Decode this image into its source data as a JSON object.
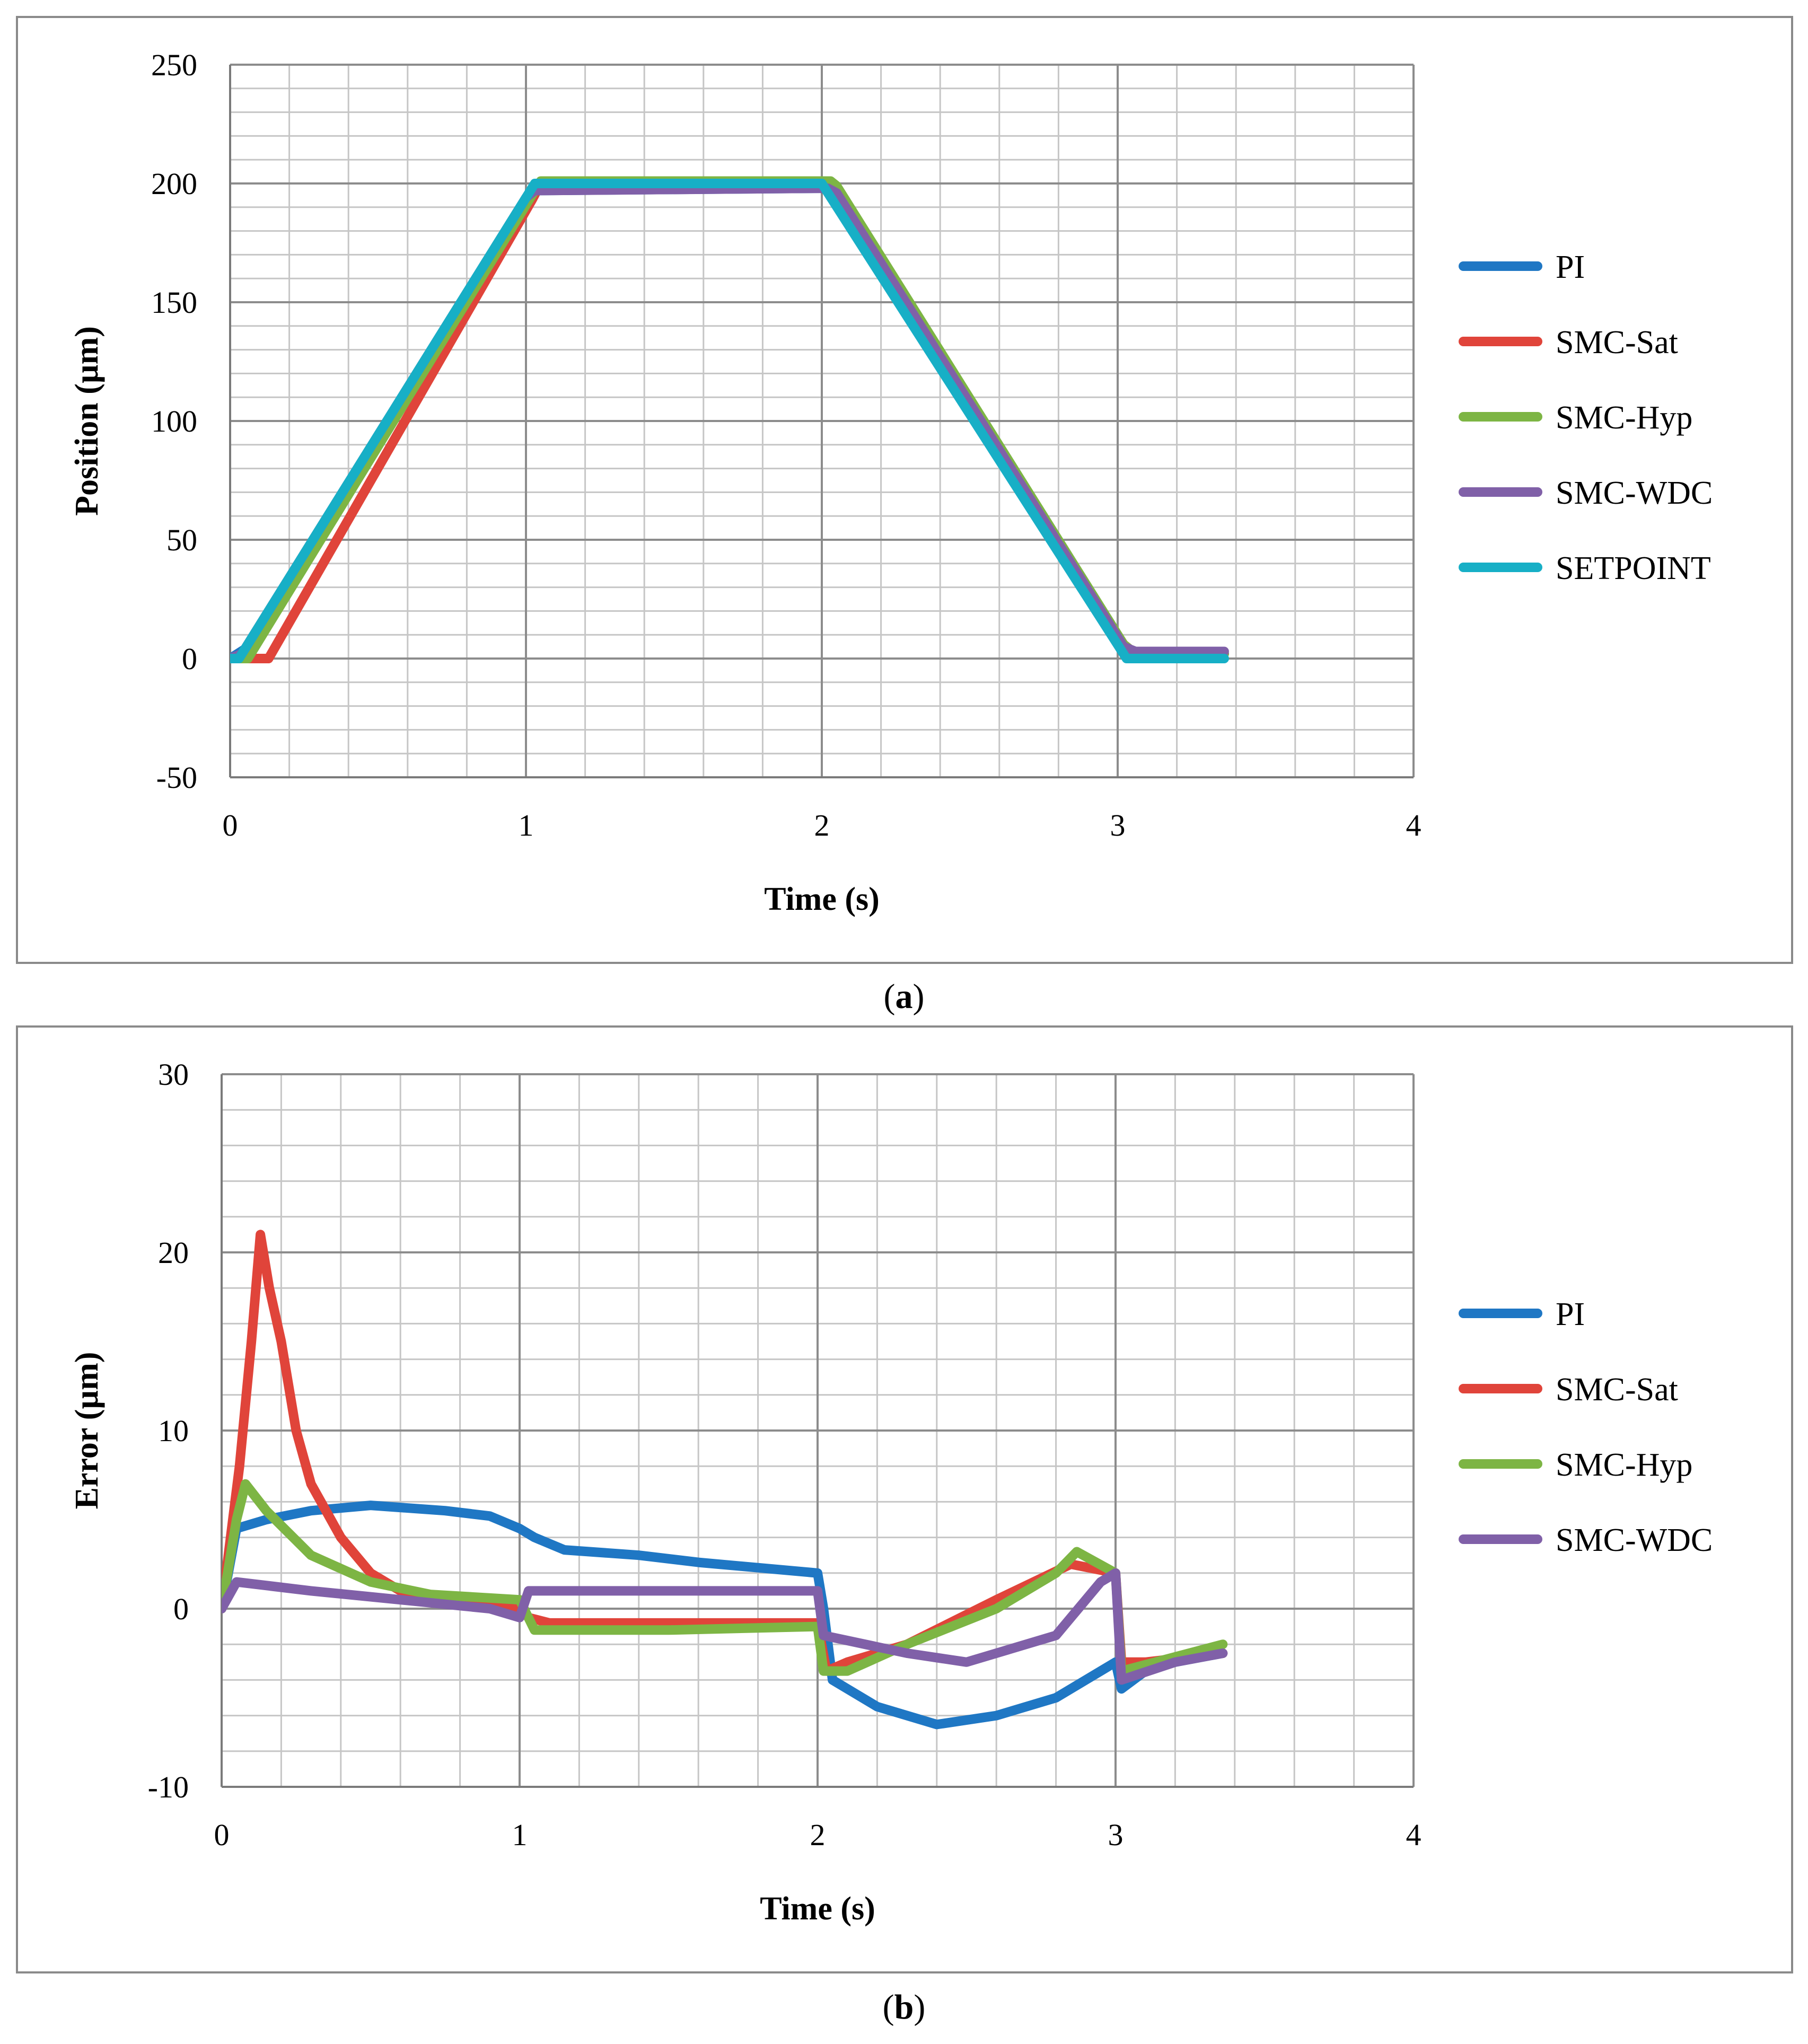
{
  "captions": {
    "a_open": "(",
    "a_letter": "a",
    "a_close": ")",
    "b_open": "(",
    "b_letter": "b",
    "b_close": ")"
  },
  "chart_data": [
    {
      "type": "line",
      "panel": "a",
      "xlabel": "Time (s)",
      "ylabel": "Position (µm)",
      "xlim": [
        0,
        4
      ],
      "ylim": [
        -50,
        250
      ],
      "x_ticks": [
        0,
        1,
        2,
        3,
        4
      ],
      "y_ticks": [
        -50,
        0,
        50,
        100,
        150,
        200,
        250
      ],
      "x_minor_step": 0.2,
      "y_minor_step": 10,
      "grid": true,
      "legend_position": "right",
      "series": [
        {
          "name": "PI",
          "color": "#1f77c4",
          "x": [
            0,
            0.05,
            1.0,
            1.03,
            2.0,
            2.03,
            3.0,
            3.03,
            3.36
          ],
          "y": [
            0,
            4,
            192,
            197,
            198,
            197,
            8,
            3,
            2
          ]
        },
        {
          "name": "SMC-Sat",
          "color": "#e0443a",
          "x": [
            0,
            0.13,
            1.02,
            1.05,
            2.02,
            2.04,
            3.02,
            3.06,
            3.36
          ],
          "y": [
            0,
            0,
            193,
            200,
            200,
            198,
            6,
            2,
            2
          ]
        },
        {
          "name": "SMC-Hyp",
          "color": "#7db544",
          "x": [
            0,
            0.06,
            1.02,
            1.05,
            2.03,
            2.05,
            3.02,
            3.06,
            3.36
          ],
          "y": [
            0,
            0,
            195,
            201,
            201,
            199,
            6,
            2,
            2
          ]
        },
        {
          "name": "SMC-WDC",
          "color": "#8060a8",
          "x": [
            0,
            0.04,
            1.0,
            1.03,
            2.02,
            2.05,
            3.02,
            3.06,
            3.36
          ],
          "y": [
            0,
            2,
            194,
            197,
            198,
            196,
            5,
            3,
            3
          ]
        },
        {
          "name": "SETPOINT",
          "color": "#17afc6",
          "x": [
            0,
            0.03,
            1.03,
            2.0,
            3.03,
            3.36
          ],
          "y": [
            0,
            0,
            200,
            200,
            0,
            0
          ]
        }
      ]
    },
    {
      "type": "line",
      "panel": "b",
      "xlabel": "Time (s)",
      "ylabel": "Error (µm)",
      "xlim": [
        0,
        4
      ],
      "ylim": [
        -10,
        30
      ],
      "x_ticks": [
        0,
        1,
        2,
        3,
        4
      ],
      "y_ticks": [
        -10,
        0,
        10,
        20,
        30
      ],
      "x_minor_step": 0.2,
      "y_minor_step": 2,
      "grid": true,
      "legend_position": "right",
      "series": [
        {
          "name": "PI",
          "color": "#1f77c4",
          "x": [
            0,
            0.05,
            0.15,
            0.3,
            0.5,
            0.75,
            0.9,
            1.0,
            1.05,
            1.15,
            1.4,
            1.6,
            1.8,
            2.0,
            2.02,
            2.05,
            2.2,
            2.4,
            2.6,
            2.8,
            2.95,
            3.0,
            3.02,
            3.1,
            3.2,
            3.36
          ],
          "y": [
            0,
            4.5,
            5.0,
            5.5,
            5.8,
            5.5,
            5.2,
            4.5,
            4.0,
            3.3,
            3.0,
            2.6,
            2.3,
            2.0,
            0,
            -4.0,
            -5.5,
            -6.5,
            -6.0,
            -5.0,
            -3.5,
            -3.0,
            -4.5,
            -3.5,
            -3.0,
            -2.5
          ]
        },
        {
          "name": "SMC-Sat",
          "color": "#e0443a",
          "x": [
            0,
            0.06,
            0.1,
            0.13,
            0.16,
            0.2,
            0.25,
            0.3,
            0.4,
            0.5,
            0.6,
            0.8,
            1.0,
            1.03,
            1.1,
            1.5,
            2.0,
            2.03,
            2.1,
            2.3,
            2.6,
            2.85,
            3.0,
            3.02,
            3.1,
            3.36
          ],
          "y": [
            0,
            8,
            15,
            21,
            18,
            15,
            10,
            7,
            4,
            2,
            1,
            0.5,
            0,
            -0.5,
            -0.8,
            -0.8,
            -0.8,
            -3.5,
            -3.0,
            -2.0,
            0.5,
            2.5,
            2.0,
            -3.0,
            -3.0,
            -2.5
          ]
        },
        {
          "name": "SMC-Hyp",
          "color": "#7db544",
          "x": [
            0,
            0.05,
            0.08,
            0.15,
            0.3,
            0.5,
            0.7,
            1.0,
            1.05,
            1.5,
            2.0,
            2.02,
            2.1,
            2.3,
            2.6,
            2.8,
            2.87,
            3.0,
            3.02,
            3.36
          ],
          "y": [
            0,
            5,
            7,
            5.5,
            3.0,
            1.5,
            0.8,
            0.5,
            -1.2,
            -1.2,
            -1.0,
            -3.5,
            -3.5,
            -2.0,
            0,
            2.0,
            3.2,
            2.0,
            -3.5,
            -2.0
          ]
        },
        {
          "name": "SMC-WDC",
          "color": "#8060a8",
          "x": [
            0,
            0.05,
            0.3,
            0.6,
            0.9,
            1.0,
            1.03,
            1.5,
            2.0,
            2.02,
            2.3,
            2.5,
            2.8,
            2.95,
            3.0,
            3.02,
            3.2,
            3.36
          ],
          "y": [
            0,
            1.5,
            1.0,
            0.5,
            0,
            -0.5,
            1.0,
            1.0,
            1.0,
            -1.5,
            -2.5,
            -3.0,
            -1.5,
            1.5,
            2.0,
            -4.0,
            -3.0,
            -2.5
          ]
        }
      ]
    }
  ]
}
